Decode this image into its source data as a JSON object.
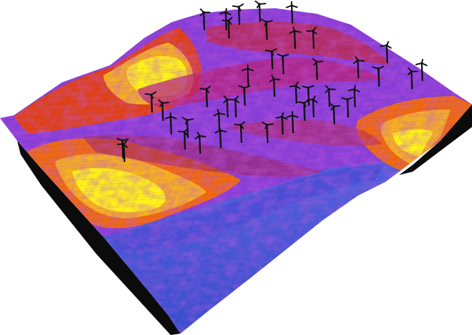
{
  "image": {
    "subject": "3d-terrain-surface-with-wind-turbines",
    "colormap": [
      "#3a4fd0",
      "#6a3fd0",
      "#9b3ae0",
      "#b8247a",
      "#d42a1a",
      "#f06a10",
      "#f7b021",
      "#fff21a"
    ],
    "turbine_color": "#111111",
    "turbine_count": 45
  }
}
